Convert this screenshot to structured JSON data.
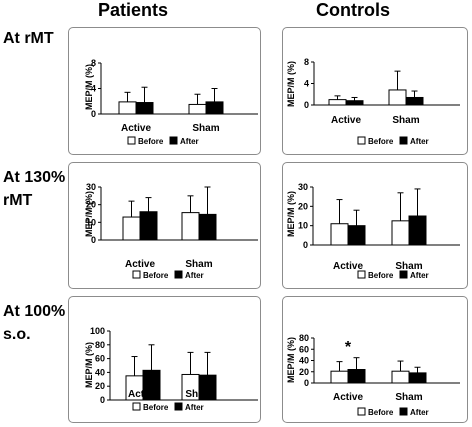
{
  "column_headers": [
    "Patients",
    "Controls"
  ],
  "row_headers": [
    [
      "At rMT"
    ],
    [
      "At 130%",
      "rMT"
    ],
    [
      "At 100%",
      "s.o."
    ]
  ],
  "ylabel": "MEP/M (%)",
  "legend": [
    "Before",
    "After"
  ],
  "colors": {
    "before": "#ffffff",
    "after": "#000000",
    "panel_border": "#8c8c8c"
  },
  "chart_data": [
    {
      "type": "bar",
      "title": "Patients At rMT",
      "categories": [
        "Active",
        "Sham"
      ],
      "ylabel": "MEP/M (%)",
      "ylim": [
        0,
        8
      ],
      "yticks": [
        0,
        4,
        8
      ],
      "series": [
        {
          "name": "Before",
          "values": [
            1.9,
            1.5
          ],
          "errors": [
            1.5,
            1.6
          ]
        },
        {
          "name": "After",
          "values": [
            1.8,
            1.9
          ],
          "errors": [
            2.4,
            2.1
          ]
        }
      ]
    },
    {
      "type": "bar",
      "title": "Controls At rMT",
      "categories": [
        "Active",
        "Sham"
      ],
      "ylabel": "MEP/M (%)",
      "ylim": [
        0,
        8
      ],
      "yticks": [
        0,
        4,
        8
      ],
      "series": [
        {
          "name": "Before",
          "values": [
            1.0,
            2.8
          ],
          "errors": [
            0.7,
            3.5
          ]
        },
        {
          "name": "After",
          "values": [
            0.8,
            1.4
          ],
          "errors": [
            0.6,
            1.2
          ]
        }
      ]
    },
    {
      "type": "bar",
      "title": "Patients At 130% rMT",
      "categories": [
        "Active",
        "Sham"
      ],
      "ylabel": "MEP/M (%)",
      "ylim": [
        0,
        30
      ],
      "yticks": [
        0,
        10,
        20,
        30
      ],
      "series": [
        {
          "name": "Before",
          "values": [
            13,
            15.5
          ],
          "errors": [
            9,
            9.5
          ]
        },
        {
          "name": "After",
          "values": [
            16,
            14.5
          ],
          "errors": [
            8,
            15.5
          ]
        }
      ]
    },
    {
      "type": "bar",
      "title": "Controls At 130% rMT",
      "categories": [
        "Active",
        "Sham"
      ],
      "ylabel": "MEP/M (%)",
      "ylim": [
        0,
        30
      ],
      "yticks": [
        0,
        10,
        20,
        30
      ],
      "series": [
        {
          "name": "Before",
          "values": [
            11,
            12.5
          ],
          "errors": [
            12.5,
            14.5
          ]
        },
        {
          "name": "After",
          "values": [
            10,
            15
          ],
          "errors": [
            8,
            14
          ]
        }
      ]
    },
    {
      "type": "bar",
      "title": "Patients At 100% s.o.",
      "categories": [
        "Active",
        "Sham"
      ],
      "ylabel": "MEP/M (%)",
      "ylim": [
        0,
        100
      ],
      "yticks": [
        0,
        20,
        40,
        60,
        80,
        100
      ],
      "series": [
        {
          "name": "Before",
          "values": [
            35,
            37
          ],
          "errors": [
            28,
            32
          ]
        },
        {
          "name": "After",
          "values": [
            43,
            36
          ],
          "errors": [
            37,
            33
          ]
        }
      ]
    },
    {
      "type": "bar",
      "title": "Controls At 100% s.o.",
      "categories": [
        "Active",
        "Sham"
      ],
      "ylabel": "MEP/M (%)",
      "ylim": [
        0,
        80
      ],
      "yticks": [
        0,
        20,
        40,
        60,
        80
      ],
      "series": [
        {
          "name": "Before",
          "values": [
            21,
            21
          ],
          "errors": [
            17,
            18
          ]
        },
        {
          "name": "After",
          "values": [
            24,
            18
          ],
          "errors": [
            21,
            10
          ]
        }
      ]
    }
  ],
  "annotations": [
    {
      "chart": "Controls At 100% s.o.",
      "category": "Active",
      "text": "*"
    }
  ]
}
